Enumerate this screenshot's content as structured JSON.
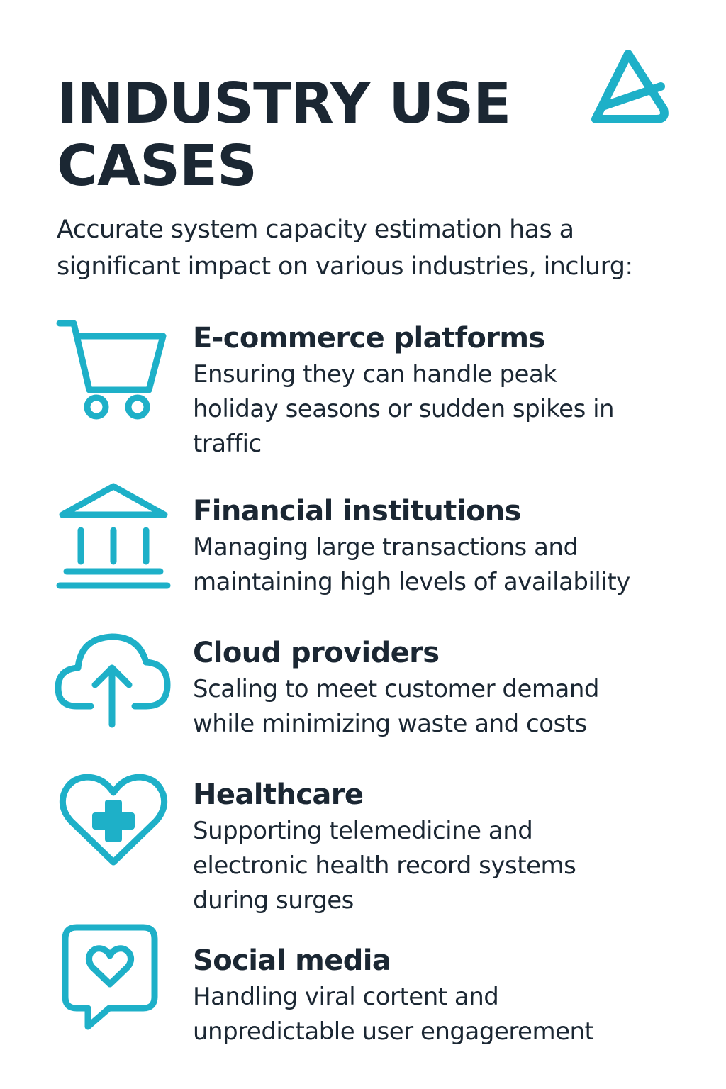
{
  "header": {
    "title": "INDUSTRY USE CASES",
    "logo_icon": "triangle-logo-icon"
  },
  "intro": "Accurate system capacity estimation has a significant impact on various industries, inclurg:",
  "accent_color": "#1eb0c8",
  "text_color": "#1b2733",
  "cases": [
    {
      "icon": "shopping-cart-icon",
      "title": "E-commerce platforms",
      "description": "Ensuring they can handle peak holiday seasons or sudden spikes in traffic"
    },
    {
      "icon": "bank-building-icon",
      "title": "Financial institutions",
      "description": "Managing large transactions and maintaining high levels of availability"
    },
    {
      "icon": "cloud-upload-icon",
      "title": "Cloud providers",
      "description": "Scaling to meet customer demand while minimizing waste and costs"
    },
    {
      "icon": "heart-plus-icon",
      "title": "Healthcare",
      "description": "Supporting telemedicine and electronic health record systems during surges"
    },
    {
      "icon": "chat-heart-icon",
      "title": "Social media",
      "description": "Handling viral cortent and unpredictable user engagerement"
    }
  ]
}
